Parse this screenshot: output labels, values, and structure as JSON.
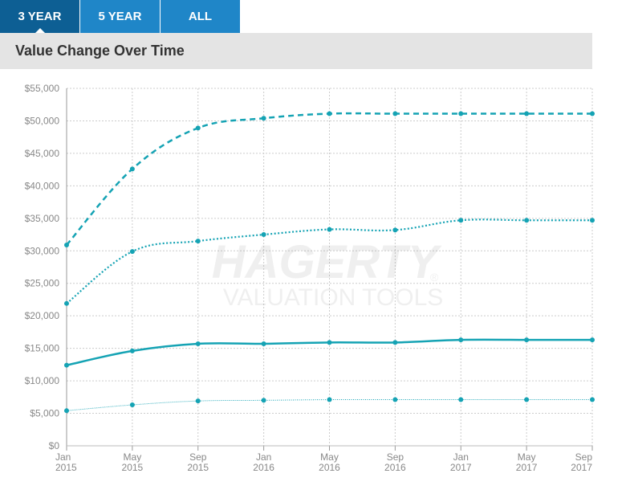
{
  "tabs": [
    {
      "label": "3 YEAR",
      "active": true
    },
    {
      "label": "5 YEAR",
      "active": false
    },
    {
      "label": "ALL",
      "active": false
    }
  ],
  "header": {
    "title": "Value Change Over Time"
  },
  "watermark": {
    "brand": "HAGERTY",
    "registered": "®",
    "tagline": "VALUATION TOOLS"
  },
  "colors": {
    "series": "#15a3b4",
    "grid": "#cccccc",
    "axis_text": "#888888",
    "tab": "#1f86c8",
    "tab_active": "#0d5f94",
    "header_bg": "#e4e4e4"
  },
  "chart_data": {
    "type": "line",
    "title": "Value Change Over Time",
    "xlabel": "",
    "ylabel": "",
    "ylim": [
      0,
      55000
    ],
    "y_ticks": [
      0,
      5000,
      10000,
      15000,
      20000,
      25000,
      30000,
      35000,
      40000,
      45000,
      50000,
      55000
    ],
    "y_tick_labels": [
      "$0",
      "$5,000",
      "$10,000",
      "$15,000",
      "$20,000",
      "$25,000",
      "$30,000",
      "$35,000",
      "$40,000",
      "$45,000",
      "$50,000",
      "$55,000"
    ],
    "categories": [
      [
        "Jan",
        "2015"
      ],
      [
        "May",
        "2015"
      ],
      [
        "Sep",
        "2015"
      ],
      [
        "Jan",
        "2016"
      ],
      [
        "May",
        "2016"
      ],
      [
        "Sep",
        "2016"
      ],
      [
        "Jan",
        "2017"
      ],
      [
        "May",
        "2017"
      ],
      [
        "Sep",
        "2017"
      ]
    ],
    "grid": true,
    "series": [
      {
        "style": "dashed",
        "values": [
          30900,
          42600,
          48900,
          50400,
          51100,
          51100,
          51100,
          51100,
          51100
        ]
      },
      {
        "style": "dotted",
        "values": [
          21900,
          29900,
          31500,
          32500,
          33300,
          33200,
          34700,
          34700,
          34700
        ]
      },
      {
        "style": "solid",
        "values": [
          12400,
          14600,
          15700,
          15700,
          15900,
          15900,
          16300,
          16300,
          16300
        ]
      },
      {
        "style": "thin",
        "values": [
          5400,
          6300,
          6900,
          7000,
          7100,
          7100,
          7100,
          7100,
          7100
        ]
      }
    ]
  }
}
